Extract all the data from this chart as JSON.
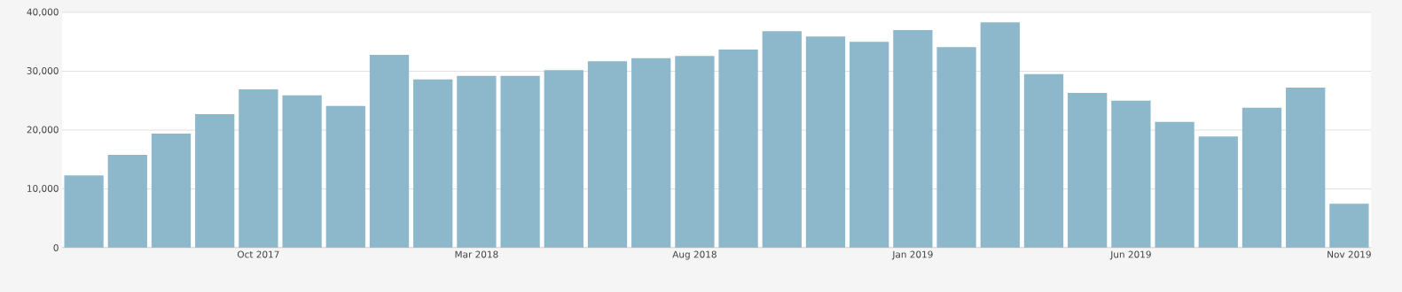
{
  "chart_data": {
    "type": "bar",
    "categories": [
      null,
      null,
      null,
      null,
      "Oct 2017",
      null,
      null,
      null,
      null,
      "Mar 2018",
      null,
      null,
      null,
      null,
      "Aug 2018",
      null,
      null,
      null,
      null,
      "Jan 2019",
      null,
      null,
      null,
      null,
      "Jun 2019",
      null,
      null,
      null,
      null,
      "Nov 2019"
    ],
    "values": [
      12300,
      15800,
      19400,
      22700,
      26900,
      25900,
      24100,
      32800,
      28600,
      29200,
      29200,
      30200,
      31700,
      32200,
      32600,
      33700,
      36800,
      35900,
      35000,
      37000,
      34100,
      38300,
      29500,
      26300,
      25000,
      21400,
      18900,
      23800,
      27200,
      7500
    ],
    "color": "#8db8cc",
    "ylim": [
      0,
      40000
    ],
    "yticks": [
      {
        "value": 0,
        "label": "0"
      },
      {
        "value": 10000,
        "label": "10,000"
      },
      {
        "value": 20000,
        "label": "20,000"
      },
      {
        "value": 30000,
        "label": "30,000"
      },
      {
        "value": 40000,
        "label": "40,000"
      }
    ],
    "grid": "y"
  }
}
